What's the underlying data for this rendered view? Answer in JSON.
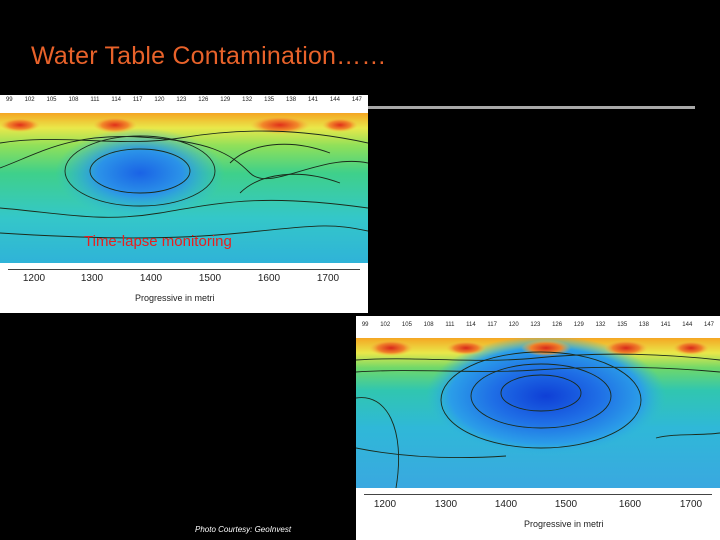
{
  "slide": {
    "title": "Water Table Contamination……",
    "overlay_label": "Time-lapse monitoring",
    "credit": "Photo Courtesy: GeoInvest"
  },
  "figure_top": {
    "top_ticks": [
      "99",
      "102",
      "105",
      "108",
      "111",
      "114",
      "117",
      "120",
      "123",
      "126",
      "129",
      "132",
      "135",
      "138",
      "141",
      "144",
      "147"
    ],
    "x_ticks": [
      "1200",
      "1300",
      "1400",
      "1500",
      "1600",
      "1700"
    ],
    "x_label": "Progressive in metri"
  },
  "figure_bottom": {
    "top_ticks": [
      "99",
      "102",
      "105",
      "108",
      "111",
      "114",
      "117",
      "120",
      "123",
      "126",
      "129",
      "132",
      "135",
      "138",
      "141",
      "144",
      "147"
    ],
    "x_ticks": [
      "1200",
      "1300",
      "1400",
      "1500",
      "1600",
      "1700"
    ],
    "x_label": "Progressive in metri"
  },
  "colors": {
    "title": "#e8622a",
    "overlay_label": "#e62020",
    "background": "#000000"
  }
}
